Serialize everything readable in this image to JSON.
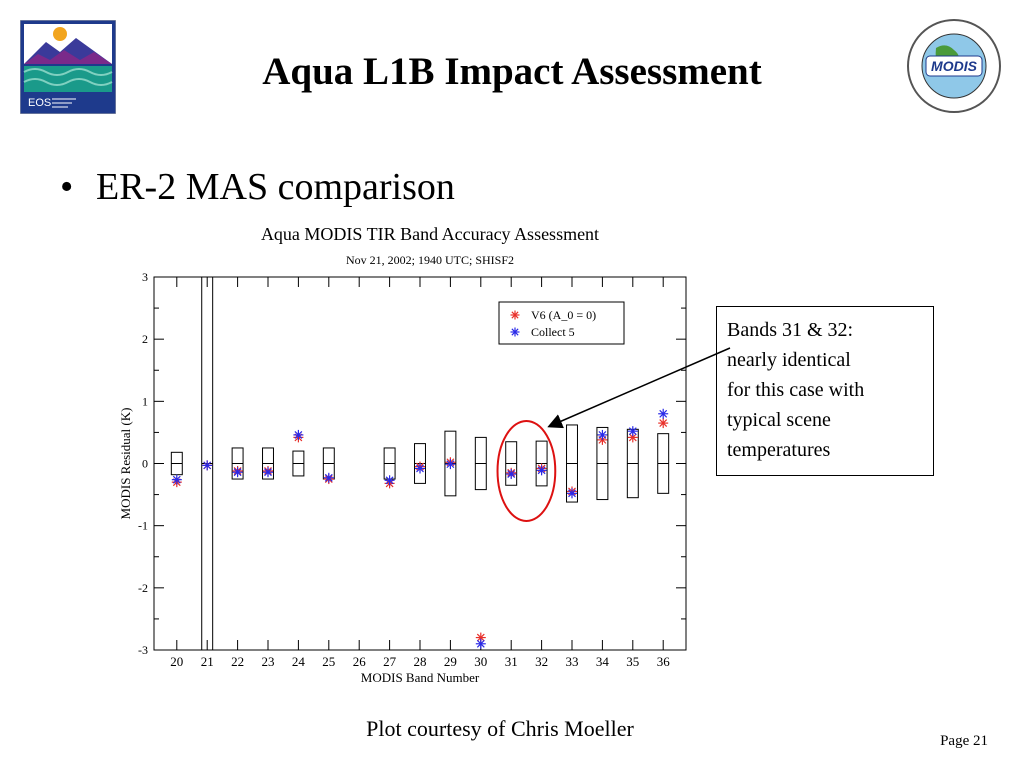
{
  "slide": {
    "title": "Aqua L1B Impact Assessment",
    "bullet": "ER-2 MAS comparison",
    "caption": "Plot courtesy of Chris Moeller",
    "page": "Page 21",
    "callout": [
      "Bands 31 & 32:",
      "nearly identical",
      "for this case with",
      "typical scene",
      "temperatures"
    ],
    "logos": {
      "left_text": "EOS",
      "right_text": "MODIS"
    }
  },
  "chart_data": {
    "type": "scatter",
    "title": "Aqua MODIS TIR Band Accuracy Assessment",
    "subtitle": "Nov 21, 2002; 1940 UTC; SHISF2",
    "xlabel": "MODIS Band Number",
    "ylabel": "MODIS Residual (K)",
    "categories": [
      "20",
      "21",
      "22",
      "23",
      "24",
      "25",
      "26",
      "27",
      "28",
      "29",
      "30",
      "31",
      "32",
      "33",
      "34",
      "35",
      "36"
    ],
    "ylim": [
      -3,
      3
    ],
    "yticks": [
      -3,
      -2,
      -1,
      0,
      1,
      2,
      3
    ],
    "legend_position": "top-right",
    "series": [
      {
        "name": "V6 (A_0 = 0)",
        "color": "#e8302a",
        "values": [
          -0.3,
          -0.03,
          -0.12,
          -0.12,
          0.42,
          -0.25,
          null,
          -0.32,
          -0.05,
          0.02,
          -2.8,
          -0.15,
          -0.08,
          -0.45,
          0.38,
          0.42,
          0.65
        ]
      },
      {
        "name": "Collect 5",
        "color": "#2a2ae8",
        "values": [
          -0.26,
          -0.03,
          -0.14,
          -0.14,
          0.46,
          -0.23,
          null,
          -0.27,
          -0.08,
          -0.01,
          -2.9,
          -0.17,
          -0.11,
          -0.48,
          0.46,
          0.52,
          0.8
        ]
      }
    ],
    "uncertainty_boxes": [
      0.18,
      3.5,
      0.25,
      0.25,
      0.2,
      0.25,
      null,
      0.25,
      0.32,
      0.52,
      0.42,
      0.35,
      0.36,
      0.62,
      0.58,
      0.55,
      0.48
    ],
    "highlight": {
      "categories": [
        "31",
        "32"
      ],
      "color": "#dd1111"
    }
  }
}
